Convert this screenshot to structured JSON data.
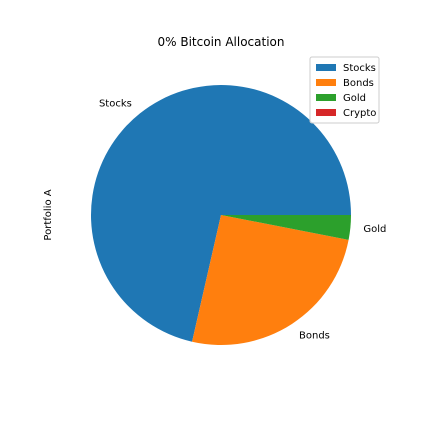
{
  "chart_data": {
    "type": "pie",
    "title": "0% Bitcoin Allocation",
    "ylabel": "Portfolio A",
    "slices": [
      {
        "label": "Stocks",
        "value": 70,
        "color": "#1f77b4"
      },
      {
        "label": "Bonds",
        "value": 25,
        "color": "#ff7f0e"
      },
      {
        "label": "Gold",
        "value": 3,
        "color": "#2ca02c"
      },
      {
        "label": "Crypto",
        "value": 0,
        "color": "#d62728"
      }
    ],
    "legend": {
      "placement": "top-right",
      "entries": [
        "Stocks",
        "Bonds",
        "Gold",
        "Crypto"
      ]
    }
  }
}
